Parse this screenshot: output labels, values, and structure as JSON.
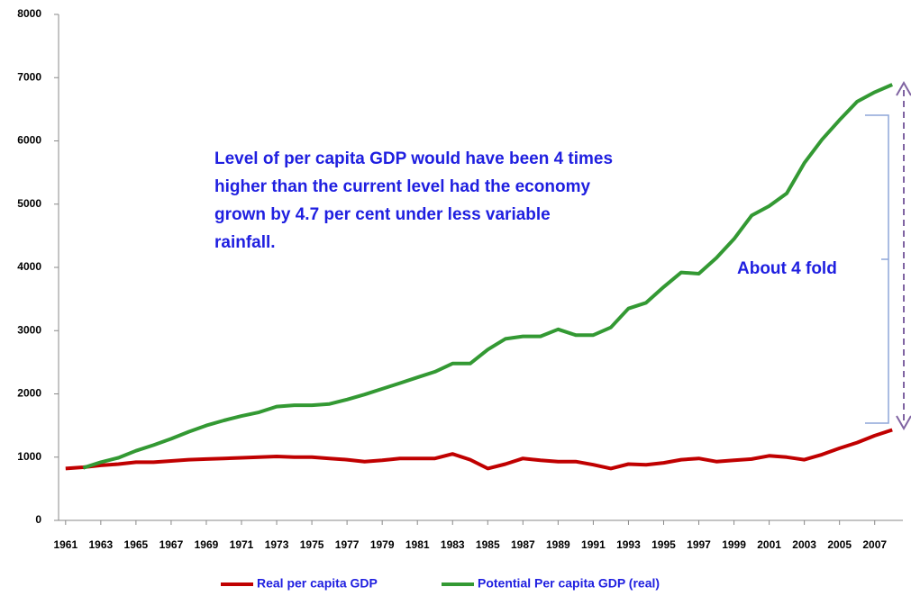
{
  "chart_data": {
    "type": "line",
    "annotations": [
      "Level of per capita GDP would have been 4 times",
      "higher than the current level had the economy",
      "grown by 4.7 per cent under less variable",
      "rainfall."
    ],
    "fold_label": "About 4 fold",
    "x": [
      1961,
      1962,
      1963,
      1964,
      1965,
      1966,
      1967,
      1968,
      1969,
      1970,
      1971,
      1972,
      1973,
      1974,
      1975,
      1976,
      1977,
      1978,
      1979,
      1980,
      1981,
      1982,
      1983,
      1984,
      1985,
      1986,
      1987,
      1988,
      1989,
      1990,
      1991,
      1992,
      1993,
      1994,
      1995,
      1996,
      1997,
      1998,
      1999,
      2000,
      2001,
      2002,
      2003,
      2004,
      2005,
      2006,
      2007,
      2008
    ],
    "xlim": [
      1960.6,
      2008.5
    ],
    "xticks": [
      1961,
      1963,
      1965,
      1967,
      1969,
      1971,
      1973,
      1975,
      1977,
      1979,
      1981,
      1983,
      1985,
      1987,
      1989,
      1991,
      1993,
      1995,
      1997,
      1999,
      2001,
      2003,
      2005,
      2007
    ],
    "ylim": [
      0,
      8000
    ],
    "yticks": [
      0,
      1000,
      2000,
      3000,
      4000,
      5000,
      6000,
      7000,
      8000
    ],
    "grid": false,
    "legend": "bottom",
    "series": [
      {
        "name": "Real per capita GDP",
        "color": "#c00000",
        "values": [
          820,
          840,
          870,
          890,
          920,
          920,
          940,
          960,
          970,
          980,
          990,
          1000,
          1010,
          1000,
          1000,
          980,
          960,
          930,
          950,
          980,
          980,
          980,
          1050,
          960,
          820,
          890,
          980,
          950,
          930,
          930,
          880,
          820,
          890,
          880,
          910,
          960,
          980,
          930,
          950,
          970,
          1020,
          1000,
          960,
          1040,
          1140,
          1230,
          1340,
          1430
        ]
      },
      {
        "name": "Potential Per capita GDP (real)",
        "color": "#339933",
        "values": [
          null,
          830,
          920,
          990,
          1100,
          1190,
          1290,
          1400,
          1500,
          1580,
          1650,
          1710,
          1800,
          1820,
          1820,
          1840,
          1910,
          1990,
          2080,
          2170,
          2260,
          2350,
          2480,
          2480,
          2700,
          2870,
          2910,
          2910,
          3020,
          2930,
          2930,
          3050,
          3350,
          3440,
          3690,
          3920,
          3900,
          4150,
          4450,
          4820,
          4970,
          5170,
          5650,
          6020,
          6330,
          6620,
          6770,
          6890
        ]
      }
    ]
  }
}
